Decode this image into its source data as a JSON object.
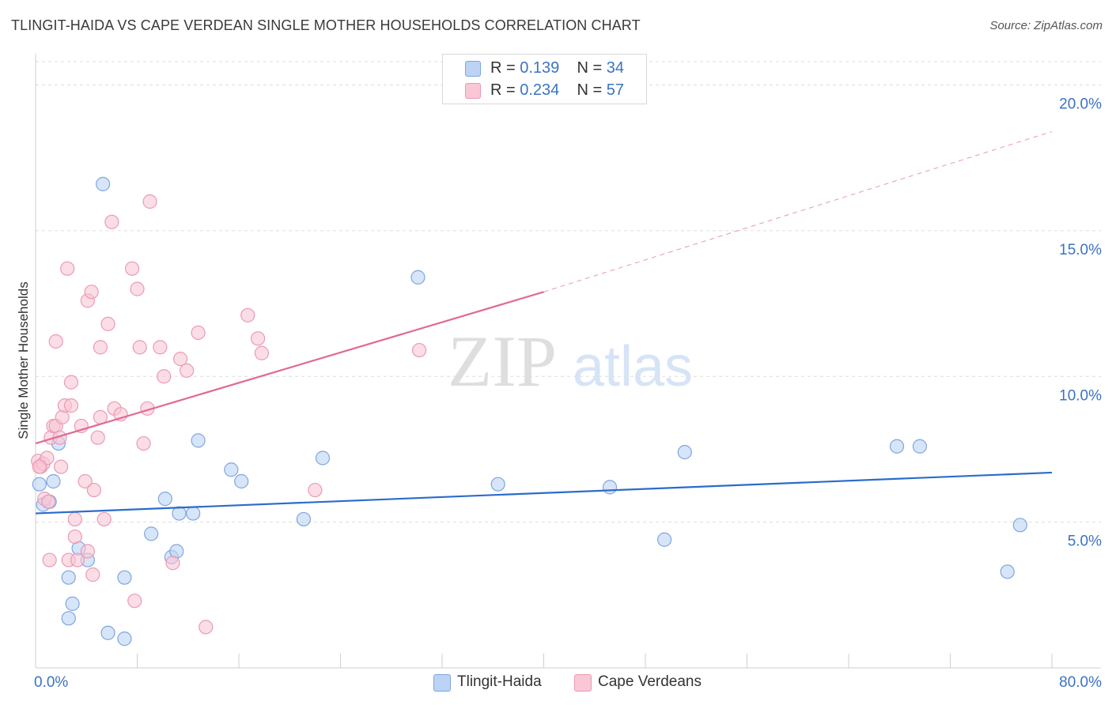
{
  "title": "TLINGIT-HAIDA VS CAPE VERDEAN SINGLE MOTHER HOUSEHOLDS CORRELATION CHART",
  "source": "Source: ZipAtlas.com",
  "watermark": {
    "zip": "ZIP",
    "atlas": "atlas"
  },
  "legend": [
    {
      "r_label": "R = ",
      "r_value": "0.139",
      "n_label": "N = ",
      "n_value": "34"
    },
    {
      "r_label": "R = ",
      "r_value": "0.234",
      "n_label": "N = ",
      "n_value": "57"
    }
  ],
  "colors": {
    "blue_fill": "#bcd3f5",
    "blue_stroke": "#7ea6de",
    "blue_line": "#2a6ccc",
    "pink_fill": "#f9c7d6",
    "pink_stroke": "#eb9ab4",
    "pink_line": "#e06a92",
    "value_text": "#3b73c4",
    "grid": "#dddddd"
  },
  "chart_data": {
    "type": "scatter",
    "title": "TLINGIT-HAIDA VS CAPE VERDEAN SINGLE MOTHER HOUSEHOLDS CORRELATION CHART",
    "xlabel": "",
    "ylabel": "Single Mother Households",
    "xlim": [
      0,
      80
    ],
    "ylim": [
      0,
      20.8
    ],
    "x_tick_labels": [
      "0.0%",
      "80.0%"
    ],
    "y_ticks": [
      5,
      10,
      15,
      20
    ],
    "y_tick_labels": [
      "5.0%",
      "10.0%",
      "15.0%",
      "20.0%"
    ],
    "grid": true,
    "legend_position": "bottom-center",
    "series": [
      {
        "name": "Tlingit-Haida",
        "color": "#bcd3f5",
        "r": 0.139,
        "n": 34,
        "trend": {
          "x0": 0,
          "y0": 5.3,
          "x1": 80,
          "y1": 6.7
        },
        "points": [
          [
            0.3,
            6.3
          ],
          [
            0.6,
            5.6
          ],
          [
            1.1,
            5.7
          ],
          [
            1.4,
            6.4
          ],
          [
            1.8,
            7.7
          ],
          [
            2.6,
            1.7
          ],
          [
            2.6,
            3.1
          ],
          [
            2.9,
            2.2
          ],
          [
            3.4,
            4.1
          ],
          [
            4.1,
            3.7
          ],
          [
            5.3,
            16.6
          ],
          [
            5.7,
            1.2
          ],
          [
            7.0,
            3.1
          ],
          [
            7.0,
            1.0
          ],
          [
            9.1,
            4.6
          ],
          [
            10.2,
            5.8
          ],
          [
            10.7,
            3.8
          ],
          [
            11.1,
            4.0
          ],
          [
            11.3,
            5.3
          ],
          [
            12.4,
            5.3
          ],
          [
            12.8,
            7.8
          ],
          [
            15.4,
            6.8
          ],
          [
            16.2,
            6.4
          ],
          [
            21.1,
            5.1
          ],
          [
            22.6,
            7.2
          ],
          [
            30.1,
            13.4
          ],
          [
            36.4,
            6.3
          ],
          [
            45.2,
            6.2
          ],
          [
            49.5,
            4.4
          ],
          [
            51.1,
            7.4
          ],
          [
            67.8,
            7.6
          ],
          [
            69.6,
            7.6
          ],
          [
            76.5,
            3.3
          ],
          [
            77.5,
            4.9
          ]
        ]
      },
      {
        "name": "Cape Verdeans",
        "color": "#f9c7d6",
        "r": 0.234,
        "n": 57,
        "trend": {
          "x0": 0,
          "y0": 7.7,
          "x1": 40,
          "y1": 12.9
        },
        "trend_ext": {
          "x0": 40,
          "y0": 12.9,
          "x1": 80,
          "y1": 18.4
        },
        "points": [
          [
            0.2,
            7.1
          ],
          [
            0.4,
            6.9
          ],
          [
            0.6,
            7.0
          ],
          [
            0.7,
            5.8
          ],
          [
            0.9,
            7.2
          ],
          [
            1.0,
            5.7
          ],
          [
            1.1,
            3.7
          ],
          [
            1.2,
            7.9
          ],
          [
            1.4,
            8.3
          ],
          [
            1.6,
            8.3
          ],
          [
            1.6,
            11.2
          ],
          [
            1.9,
            7.9
          ],
          [
            2.0,
            6.9
          ],
          [
            2.1,
            8.6
          ],
          [
            2.3,
            9.0
          ],
          [
            2.5,
            13.7
          ],
          [
            2.6,
            3.7
          ],
          [
            2.8,
            9.0
          ],
          [
            2.8,
            9.8
          ],
          [
            3.1,
            4.5
          ],
          [
            3.1,
            5.1
          ],
          [
            3.3,
            3.7
          ],
          [
            3.6,
            8.3
          ],
          [
            3.9,
            6.4
          ],
          [
            4.1,
            4.0
          ],
          [
            4.1,
            12.6
          ],
          [
            4.4,
            12.9
          ],
          [
            4.5,
            3.2
          ],
          [
            4.6,
            6.1
          ],
          [
            4.9,
            7.9
          ],
          [
            5.1,
            8.6
          ],
          [
            5.1,
            11.0
          ],
          [
            5.4,
            5.1
          ],
          [
            5.7,
            11.8
          ],
          [
            6.0,
            15.3
          ],
          [
            6.2,
            8.9
          ],
          [
            6.7,
            8.7
          ],
          [
            7.6,
            13.7
          ],
          [
            7.8,
            2.3
          ],
          [
            8.0,
            13.0
          ],
          [
            8.2,
            11.0
          ],
          [
            8.5,
            7.7
          ],
          [
            8.8,
            8.9
          ],
          [
            9.0,
            16.0
          ],
          [
            9.8,
            11.0
          ],
          [
            10.1,
            10.0
          ],
          [
            10.8,
            3.6
          ],
          [
            11.4,
            10.6
          ],
          [
            11.9,
            10.2
          ],
          [
            12.8,
            11.5
          ],
          [
            13.4,
            1.4
          ],
          [
            16.7,
            12.1
          ],
          [
            17.5,
            11.3
          ],
          [
            17.8,
            10.8
          ],
          [
            22.0,
            6.1
          ],
          [
            30.2,
            10.9
          ],
          [
            0.3,
            6.9
          ]
        ]
      }
    ]
  }
}
